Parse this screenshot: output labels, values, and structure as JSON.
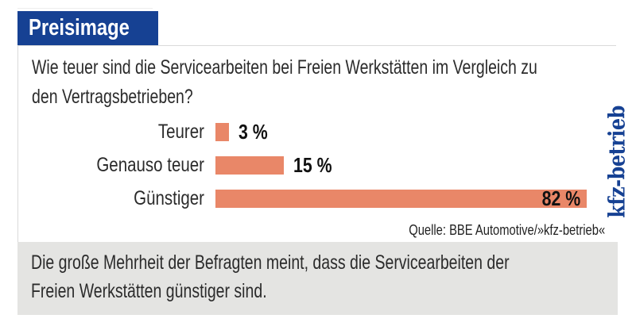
{
  "header": {
    "title": "Preisimage",
    "bg_color": "#164193",
    "text_color": "#ffffff"
  },
  "question": "Wie teuer sind die Servicearbeiten bei Freien Werkstätten im Vergleich zu\nden Vertragsbetrieben?",
  "chart_data": {
    "type": "bar",
    "orientation": "horizontal",
    "title": "Wie teuer sind die Servicearbeiten bei Freien Werkstätten im Vergleich zu den Vertragsbetrieben?",
    "categories": [
      "Teurer",
      "Genauso teuer",
      "Günstiger"
    ],
    "values": [
      3,
      15,
      82
    ],
    "value_labels": [
      "3 %",
      "15 %",
      "82 %"
    ],
    "unit": "%",
    "xlim": [
      0,
      100
    ],
    "grid": false,
    "legend": false,
    "bar_color": "#e98768",
    "value_label_position": [
      "outside",
      "outside",
      "inside"
    ]
  },
  "source": {
    "label": "Quelle: BBE Automotive/»kfz-betrieb«"
  },
  "brand": {
    "name": "kfz-betrieb",
    "color": "#164193"
  },
  "summary": "Die große Mehrheit der Befragten meint, dass die Servicearbeiten der\nFreien Werkstätten günstiger sind."
}
